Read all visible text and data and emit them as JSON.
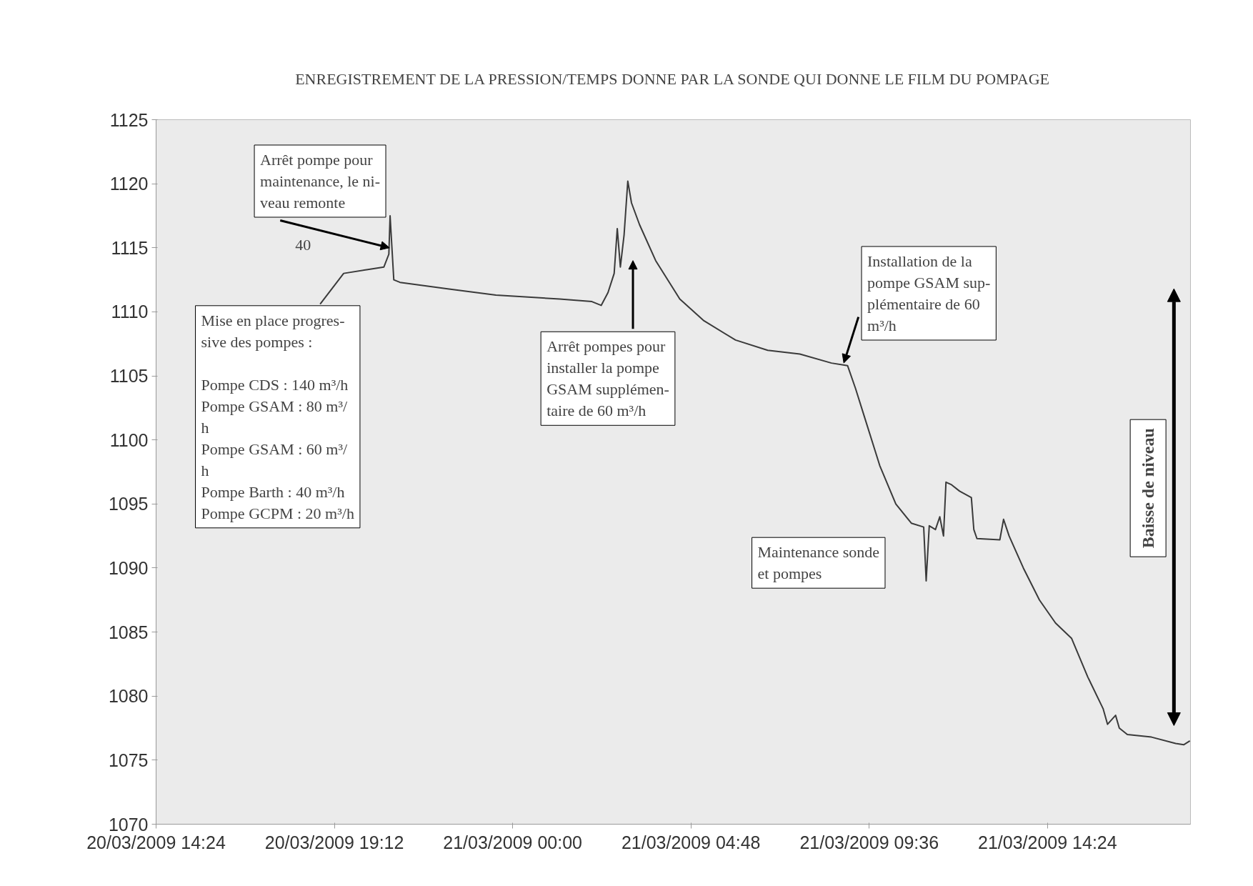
{
  "chart_data": {
    "type": "line",
    "title": "ENREGISTREMENT DE LA PRESSION/TEMPS DONNE PAR LA SONDE QUI DONNE LE FILM DU POMPAGE",
    "x": [
      "2009-03-20T18:49",
      "2009-03-20T19:27",
      "2009-03-20T20:06",
      "2009-03-20T20:32",
      "2009-03-20T20:40",
      "2009-03-20T20:42",
      "2009-03-20T20:48",
      "2009-03-20T20:58",
      "2009-03-20T22:15",
      "2009-03-20T23:33",
      "2009-03-21T01:16",
      "2009-03-21T02:08",
      "2009-03-21T02:23",
      "2009-03-21T02:34",
      "2009-03-21T02:44",
      "2009-03-21T02:49",
      "2009-03-21T02:54",
      "2009-03-21T03:00",
      "2009-03-21T03:06",
      "2009-03-21T03:12",
      "2009-03-21T03:25",
      "2009-03-21T03:51",
      "2009-03-21T04:30",
      "2009-03-21T05:09",
      "2009-03-21T06:00",
      "2009-03-21T06:52",
      "2009-03-21T07:44",
      "2009-03-21T08:35",
      "2009-03-21T09:01",
      "2009-03-21T09:14",
      "2009-03-21T09:27",
      "2009-03-21T09:53",
      "2009-03-21T10:19",
      "2009-03-21T10:44",
      "2009-03-21T11:04",
      "2009-03-21T11:08",
      "2009-03-21T11:13",
      "2009-03-21T11:23",
      "2009-03-21T11:30",
      "2009-03-21T11:36",
      "2009-03-21T11:40",
      "2009-03-21T11:49",
      "2009-03-21T12:02",
      "2009-03-21T12:21",
      "2009-03-21T12:25",
      "2009-03-21T12:30",
      "2009-03-21T13:07",
      "2009-03-21T13:13",
      "2009-03-21T13:22",
      "2009-03-21T13:45",
      "2009-03-21T14:11",
      "2009-03-21T14:37",
      "2009-03-21T15:03",
      "2009-03-21T15:29",
      "2009-03-21T15:54",
      "2009-03-21T16:01",
      "2009-03-21T16:14",
      "2009-03-21T16:20",
      "2009-03-21T16:33",
      "2009-03-21T17:12",
      "2009-03-21T17:51",
      "2009-03-21T18:04",
      "2009-03-21T18:14"
    ],
    "series": [
      {
        "color": "#3a3a3a",
        "values": [
          1110.6,
          1113.0,
          1113.3,
          1113.5,
          1114.5,
          1117.5,
          1112.5,
          1112.3,
          1111.8,
          1111.3,
          1111.0,
          1110.8,
          1110.5,
          1111.5,
          1113.0,
          1116.5,
          1113.5,
          1116.0,
          1120.2,
          1118.5,
          1116.8,
          1114.0,
          1111.0,
          1109.3,
          1107.8,
          1107.0,
          1106.7,
          1106.0,
          1105.8,
          1104.0,
          1102.0,
          1098.0,
          1095.0,
          1093.5,
          1093.2,
          1089.0,
          1093.3,
          1093.0,
          1094.0,
          1092.5,
          1096.7,
          1096.5,
          1096.0,
          1095.5,
          1093.0,
          1092.3,
          1092.2,
          1093.8,
          1092.5,
          1090.0,
          1087.5,
          1085.7,
          1084.5,
          1081.5,
          1079.0,
          1077.8,
          1078.5,
          1077.5,
          1077.0,
          1076.8,
          1076.3,
          1076.2,
          1076.5
        ]
      }
    ],
    "xlim": [
      "2009-03-20T14:24",
      "2009-03-21T18:15"
    ],
    "xticks": [
      {
        "value": "2009-03-20T14:24",
        "label": "20/03/2009 14:24"
      },
      {
        "value": "2009-03-20T19:12",
        "label": "20/03/2009 19:12"
      },
      {
        "value": "2009-03-21T00:00",
        "label": "21/03/2009 00:00"
      },
      {
        "value": "2009-03-21T04:48",
        "label": "21/03/2009 04:48"
      },
      {
        "value": "2009-03-21T09:36",
        "label": "21/03/2009 09:36"
      },
      {
        "value": "2009-03-21T14:24",
        "label": "21/03/2009 14:24"
      }
    ],
    "ylim": [
      1070,
      1125
    ],
    "yticks": [
      1070,
      1075,
      1080,
      1085,
      1090,
      1095,
      1100,
      1105,
      1110,
      1115,
      1120,
      1125
    ],
    "grid": false,
    "marker": "none",
    "line_style": "solid",
    "annotations": [
      {
        "text": "Arrêt pompe pour\nmaintenance, le ni-\nveau remonte",
        "x": "2009-03-20T20:41",
        "y": 1115
      },
      "Mise en place progres-\nsive des pompes :\n\nPompe CDS : 140 m³/h\nPompe GSAM : 80 m³/\nh\nPompe GSAM : 60 m³/\nh\nPompe Barth : 40 m³/h\nPompe GCPM : 20 m³/h",
      "Arrêt pompes pour\ninstaller la pompe\nGSAM supplémen-\ntaire de 60 m³/h",
      {
        "text": "Installation de la\npompe GSAM sup-\nplémentaire de 60\nm³/h",
        "x": "2009-03-21T08:55",
        "y": 1106
      },
      "Maintenance sonde\net pompes",
      "Baisse de niveau",
      "40"
    ]
  }
}
